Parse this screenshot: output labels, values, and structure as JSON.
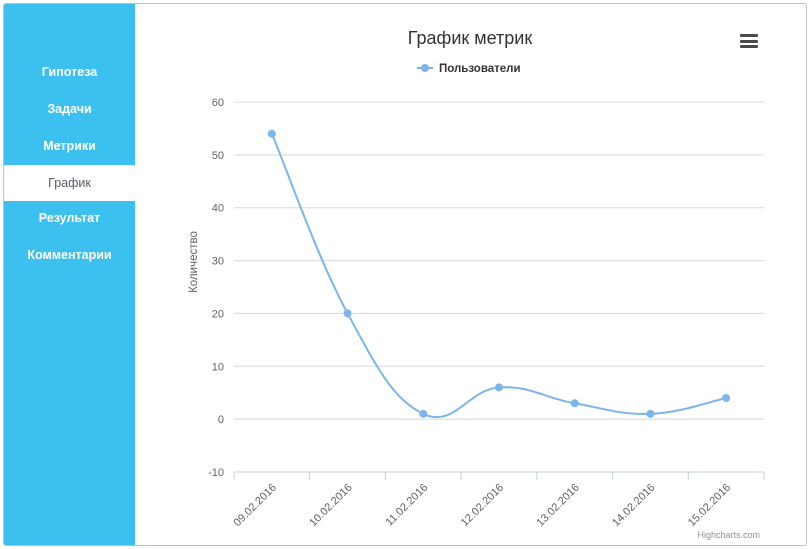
{
  "sidebar": {
    "items": [
      {
        "label": "Гипотеза",
        "active": false
      },
      {
        "label": "Задачи",
        "active": false
      },
      {
        "label": "Метрики",
        "active": false
      },
      {
        "label": "График",
        "active": true
      },
      {
        "label": "Результат",
        "active": false
      },
      {
        "label": "Комментарии",
        "active": false
      }
    ],
    "color": "#3cc0f0"
  },
  "chart": {
    "menu_icon": "hamburger-menu-icon",
    "credits": "Highcharts.com"
  },
  "chart_data": {
    "type": "line",
    "title": "График метрик",
    "xlabel": "",
    "ylabel": "Количество",
    "categories": [
      "09.02.2016",
      "10.02.2016",
      "11.02.2016",
      "12.02.2016",
      "13.02.2016",
      "14.02.2016",
      "15.02.2016"
    ],
    "series": [
      {
        "name": "Пользователи",
        "values": [
          54,
          20,
          1,
          6,
          3,
          1,
          4
        ],
        "color": "#7cb5ec"
      }
    ],
    "ylim": [
      -10,
      60
    ],
    "yticks": [
      -10,
      0,
      10,
      20,
      30,
      40,
      50,
      60
    ],
    "legend": "top-center",
    "grid": true,
    "smooth": true
  }
}
